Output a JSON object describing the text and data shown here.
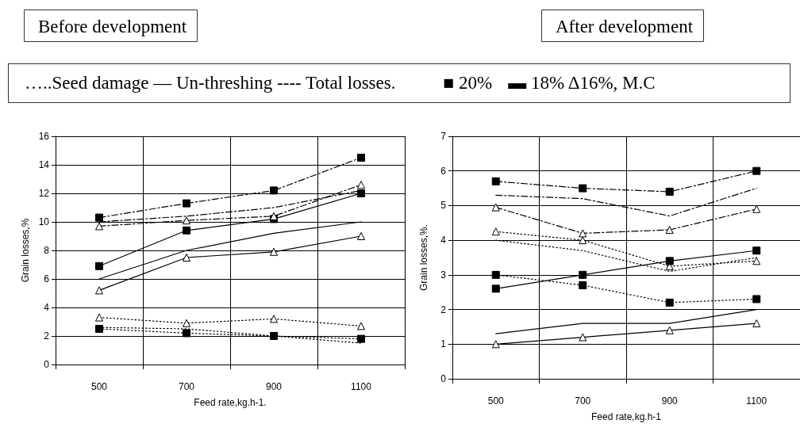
{
  "chart_data": [
    {
      "type": "line",
      "title": "Before development",
      "xlabel": "Feed rate,kg.h-1.",
      "ylabel": "Grain losses,%",
      "annotations": [
        "…..Seed damage — Un-threshing ---- Total losses.",
        "■ 20%",
        "▬ 18% Δ16%, M.C"
      ],
      "categories": [
        "500",
        "700",
        "900",
        "1100"
      ],
      "ylim": [
        0,
        16
      ],
      "yticks": [
        0,
        2,
        4,
        6,
        8,
        10,
        12,
        14,
        16
      ],
      "grid": true,
      "series": [
        {
          "color": "#000000",
          "marker": "square",
          "line_style": "dotted",
          "values": [
            2.5,
            2.2,
            2.0,
            1.8
          ]
        },
        {
          "color": "#000000",
          "marker": "none",
          "line_style": "dotted",
          "values": [
            2.6,
            2.5,
            2.0,
            1.5
          ]
        },
        {
          "color": "#000000",
          "marker": "triangle",
          "line_style": "dotted",
          "values": [
            3.3,
            2.9,
            3.2,
            2.7
          ]
        },
        {
          "color": "#000000",
          "marker": "square",
          "line_style": "solid",
          "values": [
            6.9,
            9.4,
            10.2,
            12.0
          ]
        },
        {
          "color": "#000000",
          "marker": "none",
          "line_style": "solid",
          "values": [
            6.0,
            8.0,
            9.2,
            10.0
          ]
        },
        {
          "color": "#000000",
          "marker": "triangle",
          "line_style": "solid",
          "values": [
            5.2,
            7.5,
            7.9,
            9.0
          ]
        },
        {
          "color": "#000000",
          "marker": "square",
          "line_style": "dashed",
          "values": [
            10.3,
            11.3,
            12.2,
            14.5
          ]
        },
        {
          "color": "#000000",
          "marker": "none",
          "line_style": "dashed",
          "values": [
            10.0,
            10.4,
            11.0,
            12.2
          ]
        },
        {
          "color": "#000000",
          "marker": "triangle",
          "line_style": "dashed",
          "values": [
            9.7,
            10.1,
            10.4,
            12.6
          ]
        }
      ]
    },
    {
      "type": "line",
      "title": "After development",
      "xlabel": "Feed rate,kg.h-1",
      "ylabel": "Grain losses,%.",
      "categories": [
        "500",
        "700",
        "900",
        "1100"
      ],
      "ylim": [
        0,
        7
      ],
      "yticks": [
        0,
        1,
        2,
        3,
        4,
        5,
        6,
        7
      ],
      "grid": true,
      "series": [
        {
          "color": "#000000",
          "marker": "square",
          "line_style": "dotted",
          "values": [
            3.0,
            2.7,
            2.2,
            2.3
          ]
        },
        {
          "color": "#000000",
          "marker": "none",
          "line_style": "dotted",
          "values": [
            4.0,
            3.7,
            3.1,
            3.5
          ]
        },
        {
          "color": "#000000",
          "marker": "triangle",
          "line_style": "dotted",
          "values": [
            4.25,
            4.0,
            3.25,
            3.4
          ]
        },
        {
          "color": "#000000",
          "marker": "square",
          "line_style": "solid",
          "values": [
            2.6,
            3.0,
            3.4,
            3.7
          ]
        },
        {
          "color": "#000000",
          "marker": "none",
          "line_style": "solid",
          "values": [
            1.3,
            1.6,
            1.6,
            2.0
          ]
        },
        {
          "color": "#000000",
          "marker": "triangle",
          "line_style": "solid",
          "values": [
            1.0,
            1.2,
            1.4,
            1.6
          ]
        },
        {
          "color": "#000000",
          "marker": "square",
          "line_style": "dashed",
          "values": [
            5.7,
            5.5,
            5.4,
            6.0
          ]
        },
        {
          "color": "#000000",
          "marker": "none",
          "line_style": "dashed",
          "values": [
            5.3,
            5.2,
            4.7,
            5.5
          ]
        },
        {
          "color": "#000000",
          "marker": "triangle",
          "line_style": "dashed",
          "values": [
            4.95,
            4.2,
            4.3,
            4.9
          ]
        }
      ]
    }
  ]
}
